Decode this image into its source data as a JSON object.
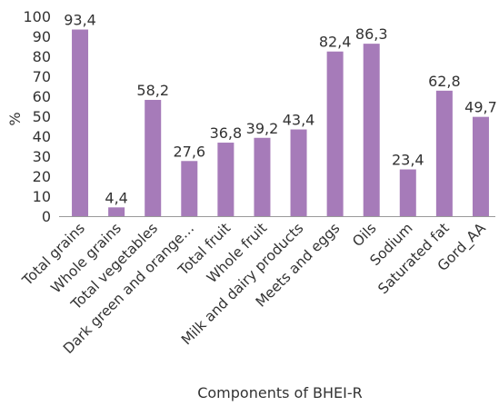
{
  "chart_data": {
    "type": "bar",
    "title": "",
    "xlabel": "Components of BHEI-R",
    "ylabel": "%",
    "ylim": [
      0,
      100
    ],
    "yticks": [
      0,
      10,
      20,
      30,
      40,
      50,
      60,
      70,
      80,
      90,
      100
    ],
    "categories": [
      "Total grains",
      "Whole grains",
      "Total vegetables",
      "Dark green and orange…",
      "Total fruit",
      "Whole fruit",
      "Milk and dairy products",
      "Meets and eggs",
      "Oils",
      "Sodium",
      "Saturated fat",
      "Gord_AA"
    ],
    "values": [
      93.4,
      4.4,
      58.2,
      27.6,
      36.8,
      39.2,
      43.4,
      82.4,
      86.3,
      23.4,
      62.8,
      49.7
    ],
    "data_labels": [
      "93,4",
      "4,4",
      "58,2",
      "27,6",
      "36,8",
      "39,2",
      "43,4",
      "82,4",
      "86,3",
      "23,4",
      "62,8",
      "49,7"
    ],
    "grid": false,
    "legend": "none",
    "bar_color": "#a67bb9",
    "axis_color": "#999999"
  }
}
